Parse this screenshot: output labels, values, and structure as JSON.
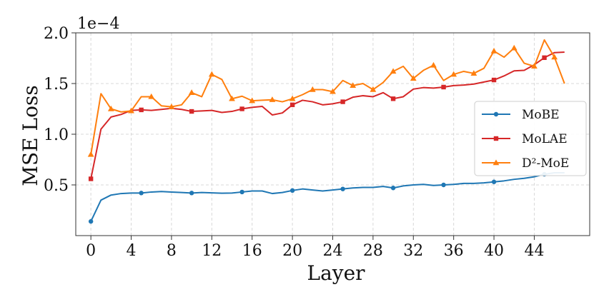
{
  "chart_data": {
    "type": "line",
    "xlabel": "Layer",
    "ylabel": "MSE Loss",
    "y_multiplier": "1e−4",
    "xlim": [
      -1.5,
      49.5
    ],
    "ylim": [
      0.0,
      2.0
    ],
    "xticks": [
      0,
      4,
      8,
      12,
      16,
      20,
      24,
      28,
      32,
      36,
      40,
      44
    ],
    "xtick_labels": [
      "0",
      "4",
      "8",
      "12",
      "16",
      "20",
      "24",
      "28",
      "32",
      "36",
      "40",
      "44"
    ],
    "yticks": [
      0.5,
      1.0,
      1.5,
      2.0
    ],
    "ytick_labels": [
      "0.5",
      "1.0",
      "1.5",
      "2.0"
    ],
    "grid": true,
    "legend_position": "center-right",
    "x": [
      0,
      1,
      2,
      3,
      4,
      5,
      6,
      7,
      8,
      9,
      10,
      11,
      12,
      13,
      14,
      15,
      16,
      17,
      18,
      19,
      20,
      21,
      22,
      23,
      24,
      25,
      26,
      27,
      28,
      29,
      30,
      31,
      32,
      33,
      34,
      35,
      36,
      37,
      38,
      39,
      40,
      41,
      42,
      43,
      44,
      45,
      46,
      47
    ],
    "series": [
      {
        "name": "MoBE",
        "color": "#1f77b4",
        "marker": "circle",
        "marker_every": 5,
        "values": [
          0.14,
          0.35,
          0.4,
          0.415,
          0.42,
          0.42,
          0.43,
          0.435,
          0.43,
          0.425,
          0.42,
          0.425,
          0.422,
          0.418,
          0.42,
          0.43,
          0.44,
          0.44,
          0.415,
          0.425,
          0.445,
          0.46,
          0.45,
          0.44,
          0.45,
          0.46,
          0.47,
          0.475,
          0.475,
          0.485,
          0.47,
          0.49,
          0.5,
          0.505,
          0.495,
          0.5,
          0.505,
          0.515,
          0.515,
          0.52,
          0.53,
          0.54,
          0.555,
          0.565,
          0.58,
          0.605,
          0.62,
          0.62
        ]
      },
      {
        "name": "MoLAE",
        "color": "#d62728",
        "marker": "square",
        "marker_every": 5,
        "values": [
          0.56,
          1.05,
          1.17,
          1.195,
          1.235,
          1.24,
          1.235,
          1.245,
          1.255,
          1.245,
          1.225,
          1.23,
          1.235,
          1.215,
          1.225,
          1.25,
          1.265,
          1.275,
          1.19,
          1.21,
          1.29,
          1.335,
          1.32,
          1.29,
          1.3,
          1.32,
          1.365,
          1.38,
          1.37,
          1.41,
          1.35,
          1.37,
          1.445,
          1.46,
          1.455,
          1.465,
          1.48,
          1.485,
          1.495,
          1.515,
          1.535,
          1.575,
          1.625,
          1.63,
          1.685,
          1.755,
          1.805,
          1.81
        ]
      },
      {
        "name": "D²-MoE",
        "color": "#ff7f0e",
        "marker": "triangle",
        "marker_every": 2,
        "values": [
          0.8,
          1.4,
          1.25,
          1.22,
          1.23,
          1.37,
          1.37,
          1.28,
          1.27,
          1.29,
          1.41,
          1.37,
          1.59,
          1.54,
          1.35,
          1.375,
          1.33,
          1.335,
          1.34,
          1.32,
          1.35,
          1.39,
          1.44,
          1.44,
          1.42,
          1.53,
          1.48,
          1.5,
          1.44,
          1.51,
          1.62,
          1.67,
          1.55,
          1.63,
          1.68,
          1.53,
          1.59,
          1.62,
          1.6,
          1.65,
          1.82,
          1.76,
          1.85,
          1.7,
          1.67,
          1.93,
          1.76,
          1.5
        ]
      }
    ]
  }
}
